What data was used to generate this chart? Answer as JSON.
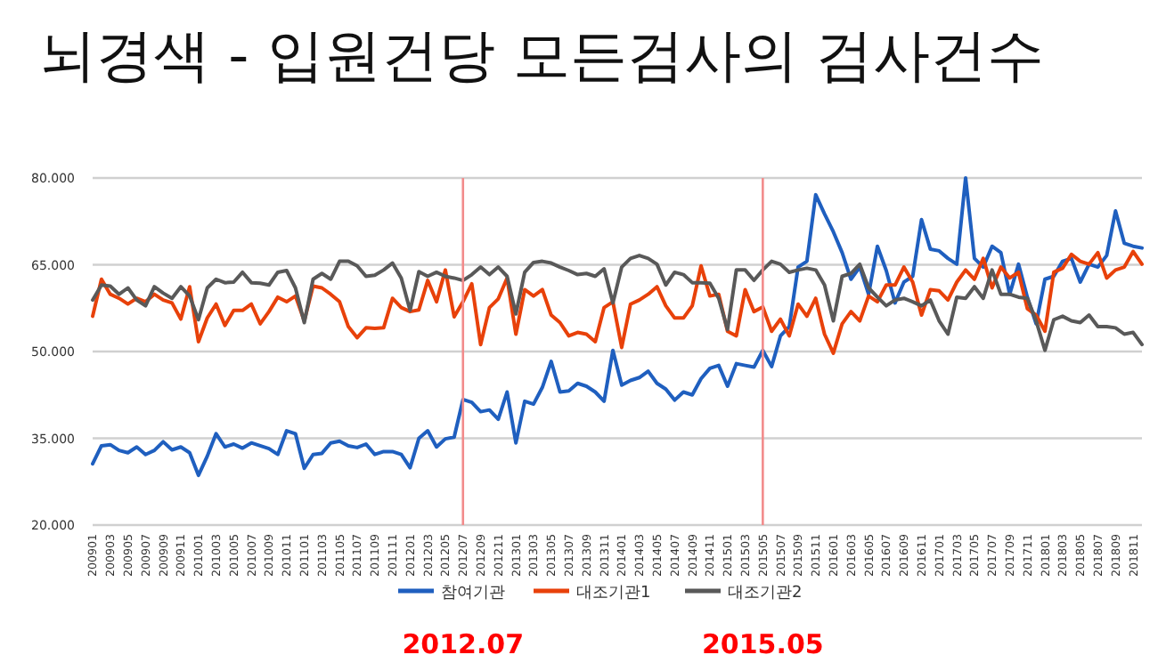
{
  "chart_data": {
    "type": "line",
    "title": "뇌경색 - 입원건당 모든검사의 검사건수",
    "x": [
      "2009-01",
      "2009-02",
      "2009-03",
      "2009-04",
      "2009-05",
      "2009-06",
      "2009-07",
      "2009-08",
      "2009-09",
      "2009-10",
      "2009-11",
      "2009-12",
      "2010-01",
      "2010-02",
      "2010-03",
      "2010-04",
      "2010-05",
      "2010-06",
      "2010-07",
      "2010-08",
      "2010-09",
      "2010-10",
      "2010-11",
      "2010-12",
      "2011-01",
      "2011-02",
      "2011-03",
      "2011-04",
      "2011-05",
      "2011-06",
      "2011-07",
      "2011-08",
      "2011-09",
      "2011-10",
      "2011-11",
      "2011-12",
      "2012-01",
      "2012-02",
      "2012-03",
      "2012-04",
      "2012-05",
      "2012-06",
      "2012-07",
      "2012-08",
      "2012-09",
      "2012-10",
      "2012-11",
      "2012-12",
      "2013-01",
      "2013-02",
      "2013-03",
      "2013-04",
      "2013-05",
      "2013-06",
      "2013-07",
      "2013-08",
      "2013-09",
      "2013-10",
      "2013-11",
      "2013-12",
      "2014-01",
      "2014-02",
      "2014-03",
      "2014-04",
      "2014-05",
      "2014-06",
      "2014-07",
      "2014-08",
      "2014-09",
      "2014-10",
      "2014-11",
      "2014-12",
      "2015-01",
      "2015-02",
      "2015-03",
      "2015-04",
      "2015-05",
      "2015-06",
      "2015-07",
      "2015-08",
      "2015-09",
      "2015-10",
      "2015-11",
      "2015-12",
      "2016-01",
      "2016-02",
      "2016-03",
      "2016-04",
      "2016-05",
      "2016-06",
      "2016-07",
      "2016-08",
      "2016-09",
      "2016-10",
      "2016-11",
      "2016-12",
      "2017-01",
      "2017-02",
      "2017-03",
      "2017-04",
      "2017-05",
      "2017-06",
      "2017-07",
      "2017-08",
      "2017-09",
      "2017-10",
      "2017-11",
      "2017-12",
      "2018-01",
      "2018-02",
      "2018-03",
      "2018-04",
      "2018-05",
      "2018-06",
      "2018-07",
      "2018-08",
      "2018-09",
      "2018-10",
      "2018-11",
      "2018-12"
    ],
    "xlim": [
      "2009-01",
      "2018-12"
    ],
    "xticks": [
      {
        "value": "2009-01",
        "label": "200901"
      },
      {
        "value": "2009-03",
        "label": "200903"
      },
      {
        "value": "2009-05",
        "label": "200905"
      },
      {
        "value": "2009-07",
        "label": "200907"
      },
      {
        "value": "2009-09",
        "label": "200909"
      },
      {
        "value": "2009-11",
        "label": "200911"
      },
      {
        "value": "2010-01",
        "label": "201001"
      },
      {
        "value": "2010-03",
        "label": "201003"
      },
      {
        "value": "2010-05",
        "label": "201005"
      },
      {
        "value": "2010-07",
        "label": "201007"
      },
      {
        "value": "2010-09",
        "label": "201009"
      },
      {
        "value": "2010-11",
        "label": "201011"
      },
      {
        "value": "2011-01",
        "label": "201101"
      },
      {
        "value": "2011-03",
        "label": "201103"
      },
      {
        "value": "2011-05",
        "label": "201105"
      },
      {
        "value": "2011-07",
        "label": "201107"
      },
      {
        "value": "2011-09",
        "label": "201109"
      },
      {
        "value": "2011-11",
        "label": "201111"
      },
      {
        "value": "2012-01",
        "label": "201201"
      },
      {
        "value": "2012-03",
        "label": "201203"
      },
      {
        "value": "2012-05",
        "label": "201205"
      },
      {
        "value": "2012-07",
        "label": "201207"
      },
      {
        "value": "2012-09",
        "label": "201209"
      },
      {
        "value": "2012-11",
        "label": "201211"
      },
      {
        "value": "2013-01",
        "label": "201301"
      },
      {
        "value": "2013-03",
        "label": "201303"
      },
      {
        "value": "2013-05",
        "label": "201305"
      },
      {
        "value": "2013-07",
        "label": "201307"
      },
      {
        "value": "2013-09",
        "label": "201309"
      },
      {
        "value": "2013-11",
        "label": "201311"
      },
      {
        "value": "2014-01",
        "label": "201401"
      },
      {
        "value": "2014-03",
        "label": "201403"
      },
      {
        "value": "2014-05",
        "label": "201405"
      },
      {
        "value": "2014-07",
        "label": "201407"
      },
      {
        "value": "2014-09",
        "label": "201409"
      },
      {
        "value": "2014-11",
        "label": "201411"
      },
      {
        "value": "2015-01",
        "label": "201501"
      },
      {
        "value": "2015-03",
        "label": "201503"
      },
      {
        "value": "2015-05",
        "label": "201505"
      },
      {
        "value": "2015-07",
        "label": "201507"
      },
      {
        "value": "2015-09",
        "label": "201509"
      },
      {
        "value": "2015-11",
        "label": "201511"
      },
      {
        "value": "2016-01",
        "label": "201601"
      },
      {
        "value": "2016-03",
        "label": "201603"
      },
      {
        "value": "2016-05",
        "label": "201605"
      },
      {
        "value": "2016-07",
        "label": "201607"
      },
      {
        "value": "2016-09",
        "label": "201609"
      },
      {
        "value": "2016-11",
        "label": "201611"
      },
      {
        "value": "2017-01",
        "label": "201701"
      },
      {
        "value": "2017-03",
        "label": "201703"
      },
      {
        "value": "2017-05",
        "label": "201705"
      },
      {
        "value": "2017-07",
        "label": "201707"
      },
      {
        "value": "2017-09",
        "label": "201709"
      },
      {
        "value": "2017-11",
        "label": "201711"
      },
      {
        "value": "2018-01",
        "label": "201801"
      },
      {
        "value": "2018-03",
        "label": "201803"
      },
      {
        "value": "2018-05",
        "label": "201805"
      },
      {
        "value": "2018-07",
        "label": "201807"
      },
      {
        "value": "2018-09",
        "label": "201809"
      },
      {
        "value": "2018-11",
        "label": "201811"
      }
    ],
    "ylim": [
      20,
      80
    ],
    "yticks": [
      {
        "value": 20,
        "label": "20.000"
      },
      {
        "value": 35,
        "label": "35.000"
      },
      {
        "value": 50,
        "label": "50.000"
      },
      {
        "value": 65,
        "label": "65.000"
      },
      {
        "value": 80,
        "label": "80.000"
      }
    ],
    "grid": "y",
    "legend": "bottom",
    "marker": "none",
    "line_style": "solid",
    "ref_lines": [
      {
        "axis": "x",
        "value": "2012-07",
        "color": "#f28b8b"
      },
      {
        "axis": "x",
        "value": "2015-05",
        "color": "#f28b8b"
      }
    ],
    "annotations": [
      "2012.07",
      "2015.05"
    ],
    "series": [
      {
        "name": "참여기관",
        "color": "#1f5fbf",
        "values": [
          30.6,
          33.7,
          33.9,
          32.9,
          32.5,
          33.5,
          32.2,
          32.9,
          34.4,
          33.0,
          33.5,
          32.5,
          28.6,
          31.9,
          35.8,
          33.5,
          34.0,
          33.3,
          34.2,
          33.7,
          33.2,
          32.2,
          36.3,
          35.8,
          29.8,
          32.2,
          32.4,
          34.2,
          34.5,
          33.7,
          33.4,
          34.0,
          32.2,
          32.7,
          32.7,
          32.2,
          29.9,
          35.0,
          36.3,
          33.5,
          34.9,
          35.2,
          41.7,
          41.2,
          39.6,
          39.9,
          38.3,
          43.0,
          34.2,
          41.4,
          40.9,
          43.8,
          48.3,
          43.0,
          43.2,
          44.5,
          44.0,
          43.0,
          41.4,
          50.2,
          44.2,
          45.0,
          45.5,
          46.6,
          44.5,
          43.5,
          41.6,
          43.0,
          42.5,
          45.3,
          47.1,
          47.6,
          44.0,
          47.9,
          47.6,
          47.3,
          50.2,
          47.4,
          52.7,
          54.3,
          64.6,
          65.6,
          77.1,
          73.8,
          70.7,
          67.1,
          62.5,
          64.6,
          59.9,
          68.2,
          64.0,
          58.4,
          62.0,
          63.0,
          72.8,
          67.7,
          67.4,
          66.1,
          65.1,
          80.0,
          66.1,
          64.6,
          68.2,
          67.1,
          59.9,
          65.1,
          59.4,
          54.8,
          62.5,
          63.0,
          65.6,
          66.1,
          62.0,
          65.1,
          64.6,
          66.6,
          74.3,
          68.7,
          68.2,
          67.9
        ]
      },
      {
        "name": "대조기관1",
        "color": "#e8410a",
        "values": [
          56.1,
          62.5,
          59.9,
          59.2,
          58.2,
          59.2,
          58.6,
          59.9,
          58.9,
          58.4,
          55.6,
          61.2,
          51.7,
          55.8,
          58.2,
          54.5,
          57.1,
          57.1,
          58.2,
          54.8,
          56.9,
          59.4,
          58.6,
          59.6,
          55.3,
          61.3,
          61.0,
          59.9,
          58.6,
          54.3,
          52.4,
          54.1,
          54.0,
          54.1,
          59.2,
          57.6,
          56.9,
          57.2,
          62.3,
          58.6,
          64.1,
          56.0,
          58.6,
          61.7,
          51.2,
          57.6,
          59.1,
          62.7,
          53.0,
          60.7,
          59.6,
          60.7,
          56.3,
          55.0,
          52.7,
          53.3,
          53.0,
          51.7,
          57.6,
          58.6,
          50.7,
          58.2,
          58.9,
          59.9,
          61.2,
          57.9,
          55.8,
          55.8,
          57.9,
          64.8,
          59.6,
          59.9,
          53.5,
          52.7,
          60.7,
          56.9,
          57.7,
          53.5,
          55.6,
          52.7,
          58.2,
          56.1,
          59.2,
          53.0,
          49.7,
          54.8,
          56.9,
          55.3,
          59.6,
          58.6,
          61.5,
          61.5,
          64.6,
          62.0,
          56.3,
          60.7,
          60.5,
          58.9,
          62.0,
          64.1,
          62.5,
          66.1,
          61.0,
          64.6,
          62.7,
          63.7,
          57.4,
          56.3,
          53.5,
          63.7,
          64.4,
          66.8,
          65.6,
          65.1,
          67.1,
          62.7,
          64.1,
          64.6,
          67.3,
          65.1
        ]
      },
      {
        "name": "대조기관2",
        "color": "#595959",
        "values": [
          58.9,
          61.5,
          61.3,
          59.9,
          61.0,
          58.9,
          57.9,
          61.2,
          60.1,
          59.2,
          61.2,
          59.6,
          55.5,
          61.0,
          62.5,
          61.9,
          62.0,
          63.7,
          61.9,
          61.8,
          61.5,
          63.7,
          64.0,
          61.0,
          55.0,
          62.5,
          63.5,
          62.5,
          65.6,
          65.6,
          64.8,
          63.0,
          63.2,
          64.1,
          65.3,
          62.7,
          57.1,
          63.8,
          63.0,
          63.7,
          63.0,
          62.7,
          62.3,
          63.3,
          64.6,
          63.3,
          64.6,
          63.0,
          56.5,
          63.7,
          65.4,
          65.6,
          65.3,
          64.6,
          64.0,
          63.3,
          63.5,
          63.0,
          64.3,
          58.4,
          64.6,
          66.1,
          66.6,
          66.1,
          65.1,
          61.5,
          63.7,
          63.3,
          61.9,
          61.9,
          61.8,
          59.2,
          53.8,
          64.1,
          64.1,
          62.3,
          64.1,
          65.6,
          65.1,
          63.7,
          64.1,
          64.4,
          64.1,
          61.5,
          55.3,
          63.0,
          63.5,
          65.1,
          61.0,
          59.4,
          57.9,
          58.9,
          59.2,
          58.6,
          57.9,
          58.9,
          55.3,
          53.0,
          59.4,
          59.2,
          61.2,
          59.2,
          64.1,
          59.9,
          59.9,
          59.4,
          59.2,
          55.3,
          50.2,
          55.5,
          56.1,
          55.3,
          55.0,
          56.3,
          54.3,
          54.3,
          54.1,
          53.0,
          53.3,
          51.2
        ]
      }
    ]
  }
}
